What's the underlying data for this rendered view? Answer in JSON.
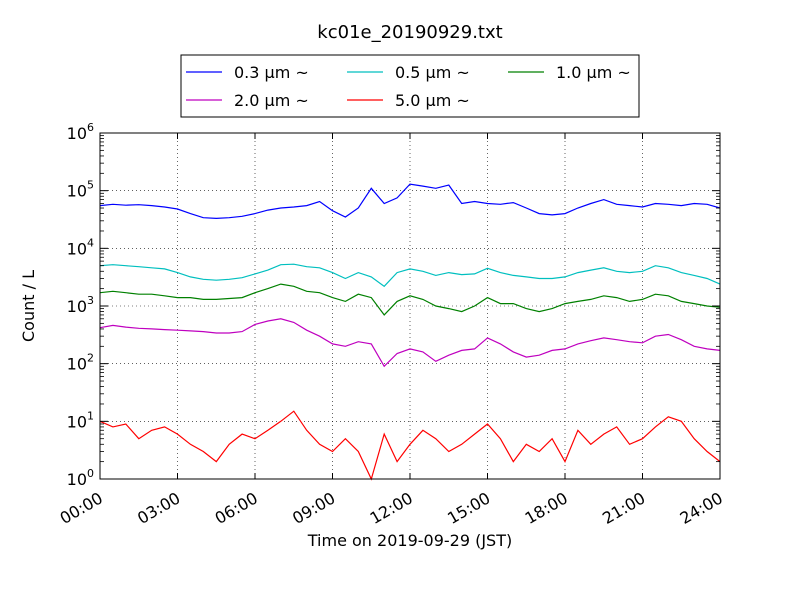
{
  "chart_data": {
    "type": "line",
    "title": "kc01e_20190929.txt",
    "xlabel": "Time on 2019-09-29 (JST)",
    "ylabel": "Count / L",
    "yscale": "log",
    "ylim": [
      1,
      1000000
    ],
    "xlim": [
      "00:00",
      "24:00"
    ],
    "grid": true,
    "legend_position": "top",
    "x_ticks": [
      "00:00",
      "03:00",
      "06:00",
      "09:00",
      "12:00",
      "15:00",
      "18:00",
      "21:00",
      "24:00"
    ],
    "y_ticks": [
      {
        "base": "10",
        "exp": "0"
      },
      {
        "base": "10",
        "exp": "1"
      },
      {
        "base": "10",
        "exp": "2"
      },
      {
        "base": "10",
        "exp": "3"
      },
      {
        "base": "10",
        "exp": "4"
      },
      {
        "base": "10",
        "exp": "5"
      },
      {
        "base": "10",
        "exp": "6"
      }
    ],
    "x_hours": [
      0,
      0.5,
      1,
      1.5,
      2,
      2.5,
      3,
      3.5,
      4,
      4.5,
      5,
      5.5,
      6,
      6.5,
      7,
      7.5,
      8,
      8.5,
      9,
      9.5,
      10,
      10.5,
      11,
      11.5,
      12,
      12.5,
      13,
      13.5,
      14,
      14.5,
      15,
      15.5,
      16,
      16.5,
      17,
      17.5,
      18,
      18.5,
      19,
      19.5,
      20,
      20.5,
      21,
      21.5,
      22,
      22.5,
      23,
      23.5,
      24
    ],
    "series": [
      {
        "name": "0.3 μm ~",
        "color": "#0000ff",
        "values": [
          55000,
          58000,
          56000,
          57000,
          55000,
          52000,
          48000,
          40000,
          34000,
          33000,
          34000,
          36000,
          40000,
          46000,
          50000,
          52000,
          55000,
          65000,
          45000,
          35000,
          50000,
          110000,
          60000,
          75000,
          130000,
          120000,
          110000,
          125000,
          60000,
          65000,
          60000,
          58000,
          62000,
          50000,
          40000,
          38000,
          40000,
          50000,
          60000,
          70000,
          58000,
          55000,
          52000,
          60000,
          58000,
          55000,
          60000,
          58000,
          50000
        ]
      },
      {
        "name": "0.5 μm ~",
        "color": "#00bfbf",
        "values": [
          5000,
          5200,
          5000,
          4800,
          4600,
          4400,
          3800,
          3200,
          2900,
          2800,
          2900,
          3100,
          3600,
          4200,
          5200,
          5300,
          4800,
          4600,
          3800,
          3000,
          3800,
          3200,
          2200,
          3800,
          4400,
          4000,
          3400,
          3800,
          3500,
          3600,
          4500,
          3800,
          3400,
          3200,
          3000,
          3000,
          3200,
          3800,
          4200,
          4600,
          4000,
          3800,
          4000,
          5000,
          4600,
          3800,
          3400,
          3000,
          2400
        ]
      },
      {
        "name": "1.0 μm ~",
        "color": "#008000",
        "values": [
          1700,
          1800,
          1700,
          1600,
          1600,
          1500,
          1400,
          1400,
          1300,
          1300,
          1350,
          1400,
          1700,
          2000,
          2400,
          2200,
          1800,
          1700,
          1400,
          1200,
          1600,
          1400,
          700,
          1200,
          1500,
          1300,
          1000,
          900,
          800,
          1000,
          1400,
          1100,
          1100,
          900,
          800,
          900,
          1100,
          1200,
          1300,
          1500,
          1400,
          1200,
          1300,
          1600,
          1500,
          1200,
          1100,
          1000,
          950
        ]
      },
      {
        "name": "2.0 μm ~",
        "color": "#bf00bf",
        "values": [
          420,
          460,
          430,
          410,
          400,
          390,
          380,
          370,
          360,
          340,
          340,
          360,
          480,
          550,
          600,
          520,
          380,
          300,
          220,
          200,
          240,
          220,
          90,
          150,
          180,
          160,
          110,
          140,
          170,
          180,
          280,
          220,
          160,
          130,
          140,
          170,
          180,
          220,
          250,
          280,
          260,
          240,
          230,
          300,
          320,
          260,
          200,
          180,
          170
        ]
      },
      {
        "name": "5.0 μm ~",
        "color": "#ff0000",
        "values": [
          10,
          8,
          9,
          5,
          7,
          8,
          6,
          4,
          3,
          2,
          4,
          6,
          5,
          7,
          10,
          15,
          7,
          4,
          3,
          5,
          3,
          1,
          6,
          2,
          4,
          7,
          5,
          3,
          4,
          6,
          9,
          5,
          2,
          4,
          3,
          5,
          2,
          7,
          4,
          6,
          8,
          4,
          5,
          8,
          12,
          10,
          5,
          3,
          2
        ]
      }
    ]
  }
}
